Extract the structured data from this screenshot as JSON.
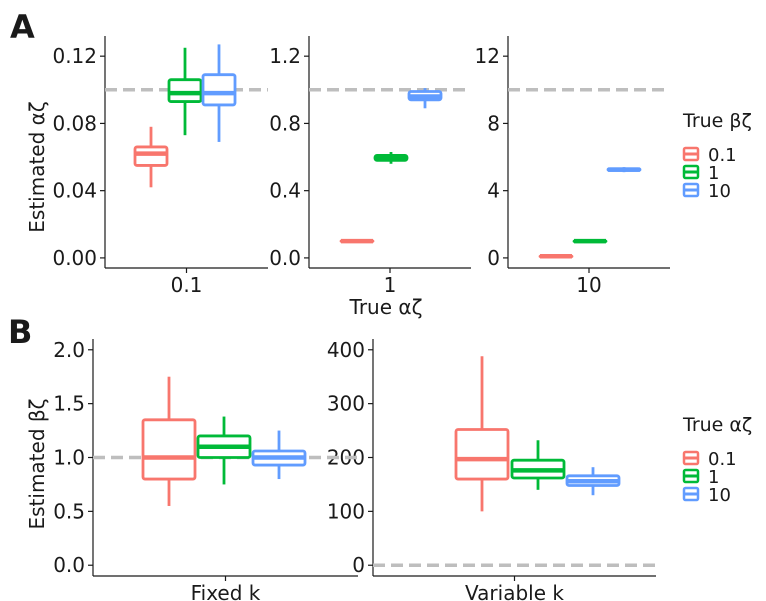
{
  "panel_labels": [
    "A",
    "B"
  ],
  "colors": {
    "0.1": "#F8766D",
    "1": "#00BA38",
    "10": "#619CFF",
    "ref_line": "#BEBEBE"
  },
  "panel_a": {
    "ylabel": "Estimated αζ",
    "xlabel": "True αζ",
    "legend_title": "True βζ",
    "legend_items": [
      "0.1",
      "1",
      "10"
    ]
  },
  "panel_b": {
    "ylabel": "Estimated βζ",
    "legend_title": "True αζ",
    "legend_items": [
      "0.1",
      "1",
      "10"
    ]
  },
  "chart_data": [
    {
      "type": "box",
      "panel": "A",
      "facet": "0.1",
      "x_tick": "0.1",
      "ylim": [
        -0.006,
        0.132
      ],
      "yticks": [
        0.0,
        0.04,
        0.08,
        0.12
      ],
      "ytick_labels": [
        "0.00",
        "0.04",
        "0.08",
        "0.12"
      ],
      "ref_line": 0.1,
      "boxes": [
        {
          "group": "0.1",
          "min": 0.042,
          "q1": 0.055,
          "median": 0.062,
          "q3": 0.066,
          "max": 0.078
        },
        {
          "group": "1",
          "min": 0.073,
          "q1": 0.093,
          "median": 0.098,
          "q3": 0.106,
          "max": 0.125
        },
        {
          "group": "10",
          "min": 0.069,
          "q1": 0.091,
          "median": 0.098,
          "q3": 0.109,
          "max": 0.127
        }
      ]
    },
    {
      "type": "box",
      "panel": "A",
      "facet": "1",
      "x_tick": "1",
      "ylim": [
        -0.06,
        1.32
      ],
      "yticks": [
        0.0,
        0.4,
        0.8,
        1.2
      ],
      "ytick_labels": [
        "0.0",
        "0.4",
        "0.8",
        "1.2"
      ],
      "ref_line": 1.0,
      "boxes": [
        {
          "group": "0.1",
          "min": 0.095,
          "q1": 0.097,
          "median": 0.1,
          "q3": 0.103,
          "max": 0.105
        },
        {
          "group": "1",
          "min": 0.56,
          "q1": 0.58,
          "median": 0.59,
          "q3": 0.61,
          "max": 0.63
        },
        {
          "group": "10",
          "min": 0.89,
          "q1": 0.94,
          "median": 0.96,
          "q3": 0.99,
          "max": 1.01
        }
      ]
    },
    {
      "type": "box",
      "panel": "A",
      "facet": "10",
      "x_tick": "10",
      "ylim": [
        -0.6,
        13.2
      ],
      "yticks": [
        0,
        4,
        8,
        12
      ],
      "ytick_labels": [
        "0",
        "4",
        "8",
        "12"
      ],
      "ref_line": 10,
      "boxes": [
        {
          "group": "0.1",
          "min": 0.05,
          "q1": 0.08,
          "median": 0.1,
          "q3": 0.12,
          "max": 0.15
        },
        {
          "group": "1",
          "min": 0.95,
          "q1": 0.98,
          "median": 1.0,
          "q3": 1.02,
          "max": 1.05
        },
        {
          "group": "10",
          "min": 5.1,
          "q1": 5.2,
          "median": 5.25,
          "q3": 5.3,
          "max": 5.4
        }
      ]
    },
    {
      "type": "box",
      "panel": "B",
      "facet": "Fixed k",
      "x_tick": "Fixed k",
      "ylim": [
        -0.1,
        2.1
      ],
      "yticks": [
        0.0,
        0.5,
        1.0,
        1.5,
        2.0
      ],
      "ytick_labels": [
        "0.0",
        "0.5",
        "1.0",
        "1.5",
        "2.0"
      ],
      "ref_line": 1.0,
      "boxes": [
        {
          "group": "0.1",
          "min": 0.55,
          "q1": 0.8,
          "median": 1.0,
          "q3": 1.35,
          "max": 1.75
        },
        {
          "group": "1",
          "min": 0.75,
          "q1": 1.0,
          "median": 1.1,
          "q3": 1.2,
          "max": 1.38
        },
        {
          "group": "10",
          "min": 0.8,
          "q1": 0.93,
          "median": 1.0,
          "q3": 1.06,
          "max": 1.25
        }
      ]
    },
    {
      "type": "box",
      "panel": "B",
      "facet": "Variable k",
      "x_tick": "Variable k",
      "ylim": [
        -20,
        420
      ],
      "yticks": [
        0,
        100,
        200,
        300,
        400
      ],
      "ytick_labels": [
        "0",
        "100",
        "200",
        "300",
        "400"
      ],
      "ref_line": 0,
      "boxes": [
        {
          "group": "0.1",
          "min": 100,
          "q1": 160,
          "median": 197,
          "q3": 252,
          "max": 388
        },
        {
          "group": "1",
          "min": 140,
          "q1": 162,
          "median": 176,
          "q3": 195,
          "max": 232
        },
        {
          "group": "10",
          "min": 130,
          "q1": 148,
          "median": 156,
          "q3": 166,
          "max": 182
        }
      ]
    }
  ]
}
